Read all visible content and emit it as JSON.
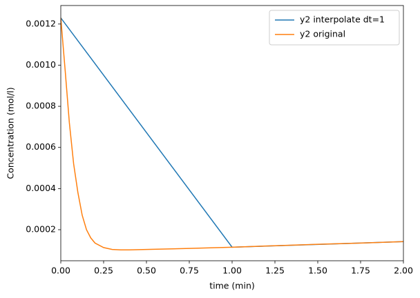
{
  "chart_data": {
    "type": "line",
    "xlabel": "time (min)",
    "ylabel": "Concentration (mol/l)",
    "xlim": [
      0,
      2
    ],
    "ylim": [
      4.9e-05,
      0.00129
    ],
    "xticks": [
      {
        "value": 0,
        "label": "0.00"
      },
      {
        "value": 0.25,
        "label": "0.25"
      },
      {
        "value": 0.5,
        "label": "0.50"
      },
      {
        "value": 0.75,
        "label": "0.75"
      },
      {
        "value": 1,
        "label": "1.00"
      },
      {
        "value": 1.25,
        "label": "1.25"
      },
      {
        "value": 1.5,
        "label": "1.50"
      },
      {
        "value": 1.75,
        "label": "1.75"
      },
      {
        "value": 2,
        "label": "2.00"
      }
    ],
    "yticks": [
      0.0002,
      0.0004,
      0.0006,
      0.0008,
      {
        "value": 0.001,
        "label": "0.0010"
      },
      0.0012
    ],
    "grid": false,
    "legend": "upper right",
    "series": [
      {
        "name": "y2 interpolate dt=1",
        "color": "#1f77b4",
        "x": [
          0,
          1,
          2
        ],
        "values": [
          0.00123,
          0.000115,
          0.000142
        ]
      },
      {
        "name": "y2 original",
        "color": "#ff7f0e",
        "x": [
          0,
          0.025,
          0.05,
          0.075,
          0.1,
          0.125,
          0.15,
          0.175,
          0.2,
          0.25,
          0.3,
          0.35,
          0.4,
          0.5,
          0.75,
          1,
          1.25,
          1.5,
          1.75,
          2
        ],
        "values": [
          0.00123,
          0.00098,
          0.00072,
          0.00052,
          0.00038,
          0.00027,
          0.0002,
          0.00016,
          0.000135,
          0.000113,
          0.000104,
          0.000102,
          0.000102,
          0.000104,
          0.000109,
          0.000115,
          0.000122,
          0.000129,
          0.000135,
          0.000142
        ]
      }
    ]
  }
}
